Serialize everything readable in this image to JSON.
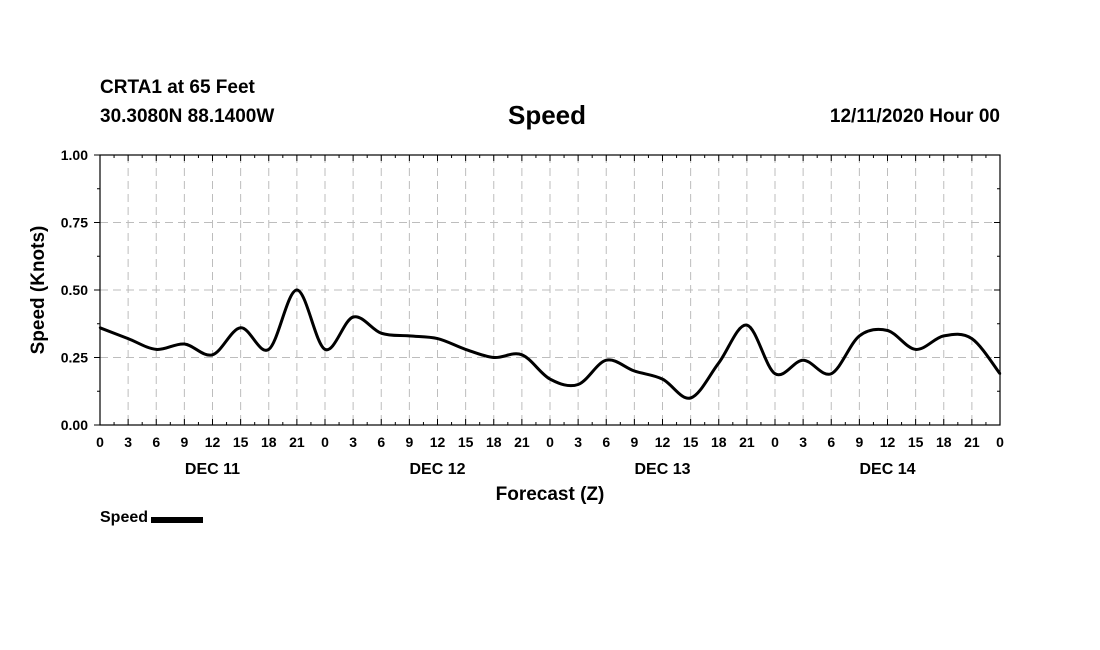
{
  "header": {
    "station": "CRTA1 at 65 Feet",
    "coords": "30.3080N 88.1400W",
    "title": "Speed",
    "date": "12/11/2020 Hour 00"
  },
  "chart_data": {
    "type": "line",
    "title": "Speed",
    "xlabel": "Forecast (Z)",
    "ylabel": "Speed (Knots)",
    "ylim": [
      0,
      1
    ],
    "xlim": [
      0,
      96
    ],
    "grid": true,
    "y_ticks": [
      "0.00",
      "0.25",
      "0.50",
      "0.75",
      "1.00"
    ],
    "x_tick_labels": [
      "0",
      "3",
      "6",
      "9",
      "12",
      "15",
      "18",
      "21",
      "0",
      "3",
      "6",
      "9",
      "12",
      "15",
      "18",
      "21",
      "0",
      "3",
      "6",
      "9",
      "12",
      "15",
      "18",
      "21",
      "0",
      "3",
      "6",
      "9",
      "12",
      "15",
      "18",
      "21",
      "0"
    ],
    "day_labels": [
      {
        "label": "DEC 11",
        "hour": 12
      },
      {
        "label": "DEC 12",
        "hour": 36
      },
      {
        "label": "DEC 13",
        "hour": 60
      },
      {
        "label": "DEC 14",
        "hour": 84
      }
    ],
    "legend": [
      {
        "name": "Speed",
        "position": "bottom-left"
      }
    ],
    "series": [
      {
        "name": "Speed",
        "x": [
          0,
          3,
          6,
          9,
          12,
          15,
          18,
          21,
          24,
          27,
          30,
          33,
          36,
          39,
          42,
          45,
          48,
          51,
          54,
          57,
          60,
          63,
          66,
          69,
          72,
          75,
          78,
          81,
          84,
          87,
          90,
          93,
          96
        ],
        "values": [
          0.36,
          0.32,
          0.28,
          0.3,
          0.26,
          0.36,
          0.28,
          0.5,
          0.28,
          0.4,
          0.34,
          0.33,
          0.32,
          0.28,
          0.25,
          0.26,
          0.17,
          0.15,
          0.24,
          0.2,
          0.17,
          0.1,
          0.23,
          0.37,
          0.19,
          0.24,
          0.19,
          0.33,
          0.35,
          0.28,
          0.33,
          0.32,
          0.19
        ]
      }
    ]
  }
}
